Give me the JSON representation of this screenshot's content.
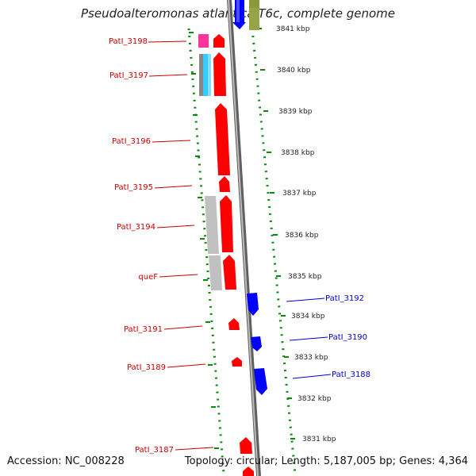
{
  "title": "Pseudoalteromonas atlantica T6c, complete genome",
  "footer": {
    "accession": "Accession: NC_008228",
    "topology": "Topology: circular; Length: 5,187,005 bp; Genes: 4,364"
  },
  "colors": {
    "forward_gene": "#ff0000",
    "reverse_gene": "#0000ff",
    "rna_magenta": "#ff3399",
    "rna_cyan": "#33ccff",
    "unknown_gray": "#c0c0c0",
    "olive": "#8a9a3a",
    "tick_green": "#0a8a0a",
    "backbone": "#808080"
  },
  "kbp_ticks": [
    "3841 kbp",
    "3840 kbp",
    "3839 kbp",
    "3838 kbp",
    "3837 kbp",
    "3836 kbp",
    "3835 kbp",
    "3834 kbp",
    "3833 kbp",
    "3832 kbp",
    "3831 kbp"
  ],
  "left_labels": [
    "PatI_3198",
    "PatI_3197",
    "PatI_3196",
    "PatI_3195",
    "PatI_3194",
    "queF",
    "PatI_3191",
    "PatI_3189",
    "PatI_3187"
  ],
  "right_labels": [
    "PatI_3192",
    "PatI_3190",
    "PatI_3188"
  ]
}
